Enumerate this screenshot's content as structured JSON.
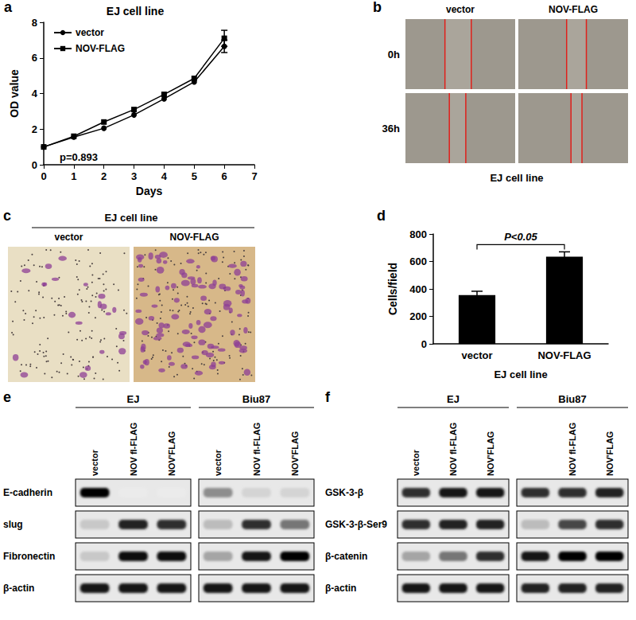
{
  "chart_data": [
    {
      "panel": "a",
      "type": "line",
      "title": "EJ cell line",
      "xlabel": "Days",
      "ylabel": "OD value",
      "x": [
        0,
        1,
        2,
        3,
        4,
        5,
        6
      ],
      "xlim": [
        0,
        7
      ],
      "xticks": [
        0,
        1,
        2,
        3,
        4,
        5,
        6,
        7
      ],
      "ylim": [
        0,
        8
      ],
      "yticks": [
        0,
        2,
        4,
        6,
        8
      ],
      "grid": false,
      "legend": "top-left",
      "annotations": [
        "p=0.893"
      ],
      "series": [
        {
          "name": "vector",
          "color": "#000000",
          "marker": "circle",
          "values": [
            1.0,
            1.55,
            2.05,
            2.8,
            3.7,
            4.65,
            6.65
          ],
          "errors": [
            0,
            0,
            0,
            0,
            0,
            0,
            0.35
          ]
        },
        {
          "name": "NOV-FLAG",
          "color": "#000000",
          "marker": "square",
          "values": [
            1.0,
            1.6,
            2.4,
            3.1,
            3.95,
            4.85,
            7.1
          ],
          "errors": [
            0,
            0,
            0,
            0,
            0,
            0,
            0.45
          ]
        }
      ]
    },
    {
      "panel": "d",
      "type": "bar",
      "xlabel": "EJ cell line",
      "ylabel": "Cells/field",
      "categories": [
        "vector",
        "NOV-FLAG"
      ],
      "values": [
        355,
        635
      ],
      "errors": [
        28,
        35
      ],
      "color": "#000000",
      "ylim": [
        0,
        800
      ],
      "yticks": [
        0,
        200,
        400,
        600,
        800
      ],
      "grid": false,
      "annotations": [
        "P<0.05"
      ]
    }
  ],
  "panels": {
    "b": {
      "letter": "b",
      "columns": [
        "vector",
        "NOV-FLAG"
      ],
      "rows": [
        "0h",
        "36h"
      ],
      "caption": "EJ cell line"
    },
    "c": {
      "letter": "c",
      "title": "EJ cell line",
      "columns": [
        "vector",
        "NOV-FLAG"
      ]
    },
    "e": {
      "letter": "e",
      "groups": [
        {
          "name": "EJ",
          "lanes": [
            "vector",
            "NOV fl-FLAG",
            "NOV'FLAG"
          ]
        },
        {
          "name": "Biu87",
          "lanes": [
            "vector",
            "NOV fl-FLAG",
            "NOV'FLAG"
          ]
        }
      ],
      "blots": [
        {
          "label": "E-cadherin",
          "bands": [
            [
              1.0,
              0.0,
              0.0
            ],
            [
              0.4,
              0.1,
              0.1
            ]
          ]
        },
        {
          "label": "slug",
          "bands": [
            [
              0.15,
              0.85,
              0.8
            ],
            [
              0.2,
              0.8,
              0.5
            ]
          ]
        },
        {
          "label": "Fibronectin",
          "bands": [
            [
              0.15,
              0.95,
              0.95
            ],
            [
              0.3,
              0.9,
              1.0
            ]
          ]
        },
        {
          "label": "β-actin",
          "bands": [
            [
              0.9,
              0.9,
              0.9
            ],
            [
              0.9,
              0.9,
              0.9
            ]
          ]
        }
      ]
    },
    "f": {
      "letter": "f",
      "groups": [
        {
          "name": "EJ",
          "lanes": [
            "vector",
            "NOV fl-FLAG",
            "NOV'FLAG"
          ]
        },
        {
          "name": "Biu87",
          "lanes": [
            null,
            "NOV fl-FLAG",
            "NOV'FLAG"
          ]
        }
      ],
      "blots": [
        {
          "label": "GSK-3-β",
          "bands": [
            [
              0.8,
              0.9,
              0.9
            ],
            [
              0.8,
              0.8,
              0.85
            ]
          ]
        },
        {
          "label": "GSK-3-β-Ser9",
          "bands": [
            [
              0.8,
              0.85,
              0.85
            ],
            [
              0.2,
              0.7,
              0.8
            ]
          ]
        },
        {
          "label": "β-catenin",
          "bands": [
            [
              0.3,
              0.5,
              0.8
            ],
            [
              0.9,
              1.0,
              1.0
            ]
          ]
        },
        {
          "label": "β-actin",
          "bands": [
            [
              0.9,
              0.9,
              0.9
            ],
            [
              0.85,
              0.85,
              0.85
            ]
          ]
        }
      ]
    }
  }
}
